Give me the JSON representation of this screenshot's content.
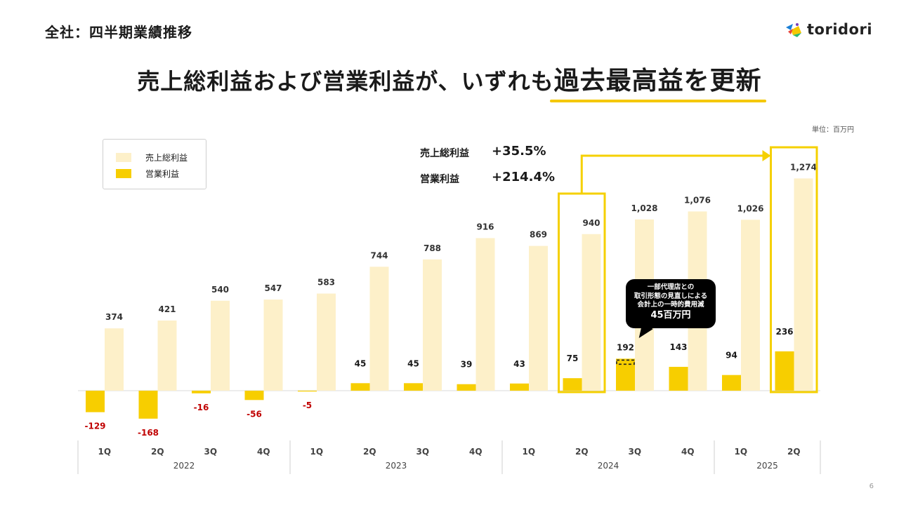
{
  "header": {
    "page_title": "全社：四半期業績推移",
    "brand_name": "toridori"
  },
  "headline": {
    "prefix": "売上総利益および営業利益が、いずれも",
    "highlight": "過去最高益を更新"
  },
  "unit_label": "単位：百万円",
  "legend": {
    "items": [
      {
        "label": "売上総利益",
        "color": "#fdf0c9"
      },
      {
        "label": "営業利益",
        "color": "#f7ce00"
      }
    ]
  },
  "growth": [
    {
      "label": "売上総利益",
      "value": "+35.5%"
    },
    {
      "label": "営業利益",
      "value": "+214.4%"
    }
  ],
  "callout": {
    "lines": [
      "一部代理店との",
      "取引形態の見直しによる",
      "会計上の一時的費用減"
    ],
    "amount": "45百万円"
  },
  "page_number": "6",
  "colors": {
    "gross": "#fdf0c9",
    "operating": "#f7ce00",
    "highlight_border": "#f5d000",
    "negative_label": "#c00000"
  },
  "chart_data": {
    "type": "bar",
    "title": "",
    "xlabel": "",
    "ylabel": "",
    "categories": [
      "1Q",
      "2Q",
      "3Q",
      "4Q",
      "1Q",
      "2Q",
      "3Q",
      "4Q",
      "1Q",
      "2Q",
      "3Q",
      "4Q",
      "1Q",
      "2Q"
    ],
    "groups": [
      {
        "label": "2022",
        "start": 0,
        "count": 4
      },
      {
        "label": "2023",
        "start": 4,
        "count": 4
      },
      {
        "label": "2024",
        "start": 8,
        "count": 4
      },
      {
        "label": "2025",
        "start": 12,
        "count": 2
      }
    ],
    "series": [
      {
        "name": "売上総利益",
        "values": [
          374,
          421,
          540,
          547,
          583,
          744,
          788,
          916,
          869,
          940,
          1028,
          1076,
          1026,
          1274
        ]
      },
      {
        "name": "営業利益",
        "values": [
          -129,
          -168,
          -16,
          -56,
          -5,
          45,
          45,
          39,
          43,
          75,
          192,
          143,
          94,
          236
        ]
      }
    ],
    "gross_labels": [
      "374",
      "421",
      "540",
      "547",
      "583",
      "744",
      "788",
      "916",
      "869",
      "940",
      "1,028",
      "1,076",
      "1,026",
      "1,274"
    ],
    "operating_labels": [
      "-129",
      "-168",
      "-16",
      "-56",
      "-5",
      "45",
      "45",
      "39",
      "43",
      "75",
      "192",
      "143",
      "94",
      "236"
    ],
    "highlighted_periods": [
      9,
      13
    ],
    "excluded_portion_period": 10,
    "excluded_portion_value": 45,
    "ylim": [
      -200,
      1300
    ],
    "legend_position": "top-left",
    "grid": false
  }
}
